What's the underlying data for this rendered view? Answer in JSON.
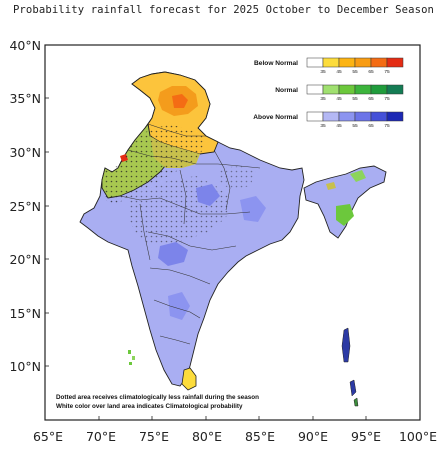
{
  "title": "Probability rainfall forecast for 2025 October to December Season",
  "axes": {
    "lat_labels": [
      "40°N",
      "35°N",
      "30°N",
      "25°N",
      "20°N",
      "15°N",
      "10°N"
    ],
    "lon_labels": [
      "65°E",
      "70°E",
      "75°E",
      "80°E",
      "85°E",
      "90°E",
      "95°E",
      "100°E"
    ]
  },
  "legend": {
    "categories": [
      {
        "name": "Below Normal",
        "colors": [
          "#ffffff",
          "#fcdc3c",
          "#fcb414",
          "#f89c14",
          "#f46c14",
          "#e42c14"
        ],
        "ticks": [
          "35",
          "45",
          "55",
          "65",
          "75"
        ]
      },
      {
        "name": "Normal",
        "colors": [
          "#ffffff",
          "#a0e070",
          "#6cc83c",
          "#3cb43c",
          "#209c3c",
          "#147c54"
        ],
        "ticks": [
          "35",
          "45",
          "55",
          "65",
          "75"
        ]
      },
      {
        "name": "Above Normal",
        "colors": [
          "#ffffff",
          "#b4b8f4",
          "#8c94f0",
          "#6c74e8",
          "#4450d8",
          "#1c28b4"
        ],
        "ticks": [
          "35",
          "45",
          "55",
          "65",
          "75"
        ]
      }
    ]
  },
  "notes": [
    "Dotted area receives climatologically less rainfall during the season",
    "White color over land area indicates Climatological probability"
  ]
}
